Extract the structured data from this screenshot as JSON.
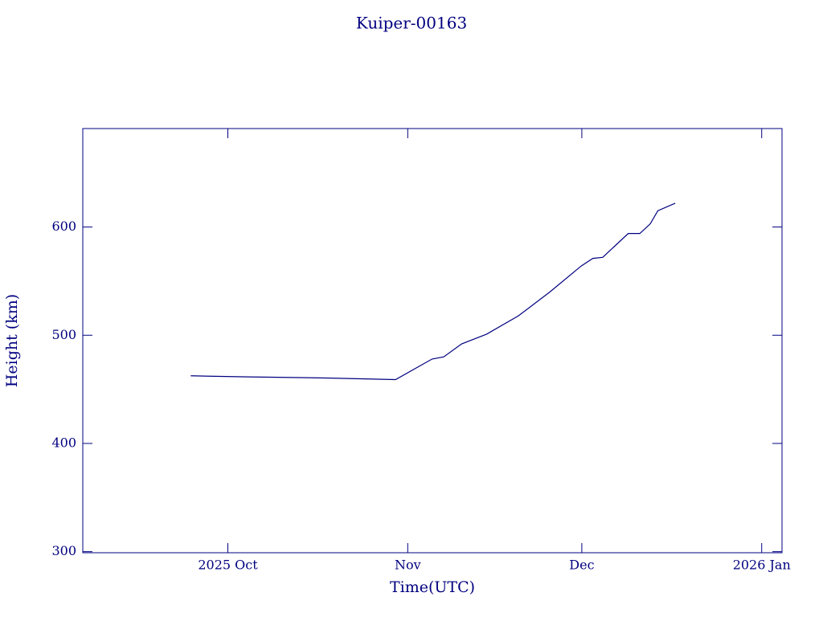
{
  "chart_data": {
    "type": "line",
    "title": "Kuiper-00163",
    "xlabel": "Time(UTC)",
    "ylabel": "Height (km)",
    "x": [
      -6.4,
      3.5,
      16.9,
      28.9,
      35.2,
      37.2,
      40.3,
      44.6,
      50.1,
      55.5,
      60.9,
      62.9,
      64.6,
      69,
      71,
      72.8,
      74.1,
      77.1
    ],
    "series": [
      {
        "name": "Kuiper-00163",
        "color": "#000080",
        "values": [
          462.5,
          461.5,
          460.5,
          459,
          478,
          480,
          492,
          501,
          518,
          540,
          564,
          571,
          572,
          594,
          594,
          603,
          615,
          622
        ]
      }
    ],
    "xlim": [
      -25,
      95.5
    ],
    "xticks": [
      {
        "value": 0,
        "label": "2025 Oct"
      },
      {
        "value": 31,
        "label": "Nov"
      },
      {
        "value": 61,
        "label": "Dec"
      },
      {
        "value": 92,
        "label": "2026 Jan"
      }
    ],
    "ylim": [
      299,
      691
    ],
    "yticks": [
      300,
      400,
      500,
      600
    ],
    "grid": false
  }
}
